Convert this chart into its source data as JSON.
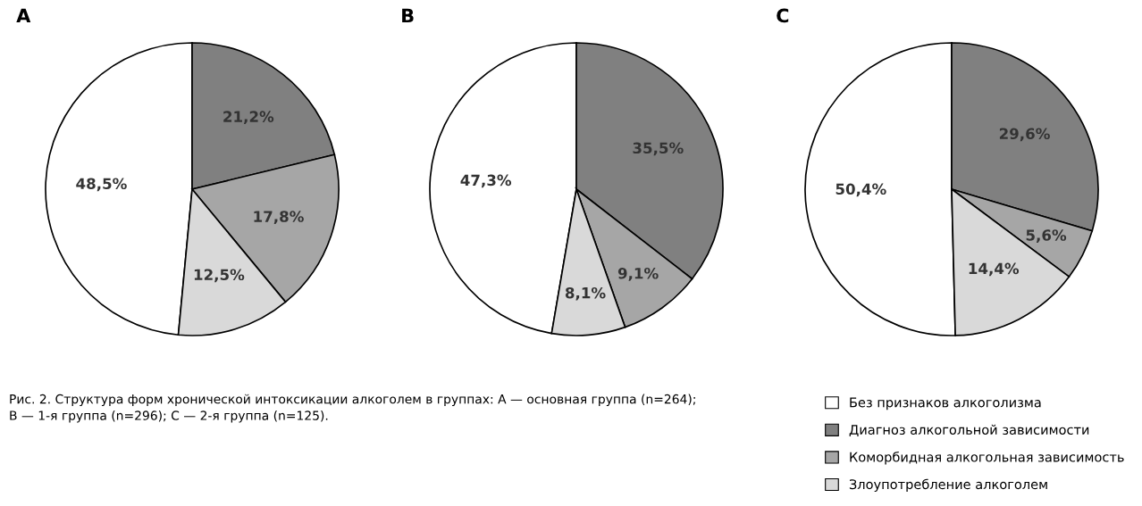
{
  "chart_data": [
    {
      "type": "pie",
      "title": "A",
      "categories": [
        "Без признаков алкоголизма",
        "Диагноз алкогольной зависимости",
        "Коморбидная алкогольная зависимость",
        "Злоупотребление алкоголем"
      ],
      "values": [
        48.5,
        21.2,
        17.8,
        12.5
      ],
      "value_labels": [
        "48,5%",
        "21,2%",
        "17,8%",
        "12,5%"
      ],
      "colors": [
        "#ffffff",
        "#808080",
        "#a6a6a6",
        "#d9d9d9"
      ],
      "legend": "bottom right",
      "annotations": [
        "Рис. 2. Структура форм хронической интоксикации алкоголем в группах: А — основная группа (n=264);",
        "В — 1-я группа (n=296); С — 2-я группа (n=125)."
      ]
    },
    {
      "type": "pie",
      "title": "B",
      "values": [
        47.3,
        35.5,
        9.1,
        8.1
      ],
      "value_labels": [
        "47,3%",
        "35,5%",
        "9,1%",
        "8,1%"
      ],
      "colors": [
        "#ffffff",
        "#808080",
        "#a6a6a6",
        "#d9d9d9"
      ]
    },
    {
      "type": "pie",
      "title": "C",
      "values": [
        50.4,
        29.6,
        5.6,
        14.4
      ],
      "value_labels": [
        "50,4%",
        "29,6%",
        "5,6%",
        "14,4%"
      ],
      "colors": [
        "#ffffff",
        "#808080",
        "#a6a6a6",
        "#d9d9d9"
      ]
    }
  ]
}
